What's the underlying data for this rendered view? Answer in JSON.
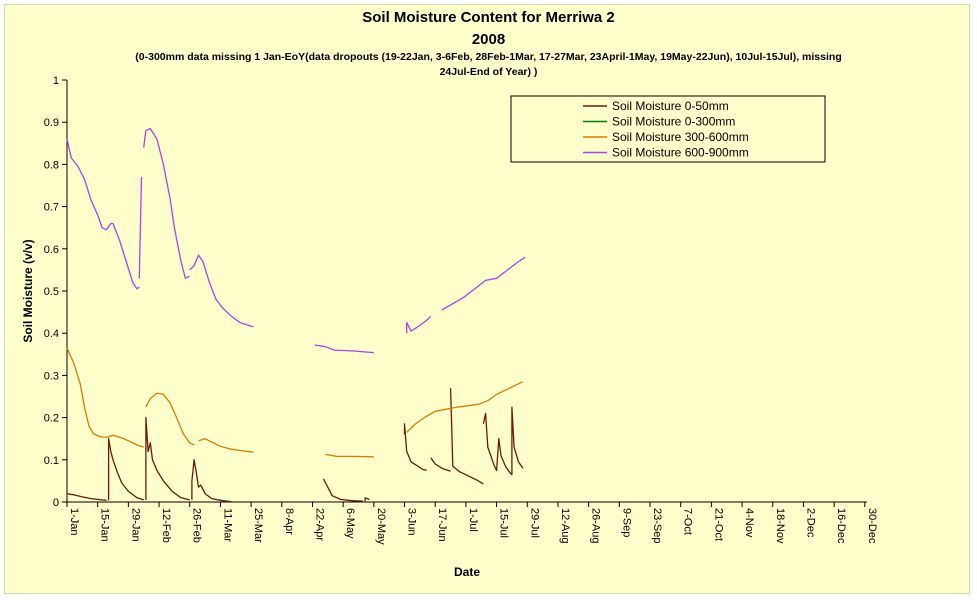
{
  "chart_data": {
    "type": "line",
    "title": "Soil Moisture Content for Merriwa 2",
    "subtitle": "2008",
    "note_line1": "(0-300mm data missing 1 Jan-EoY(data dropouts (19-22Jan, 3-6Feb, 28Feb-1Mar, 17-27Mar, 23April-1May, 19May-22Jun), 10Jul-15Jul), missing",
    "note_line2": "24Jul-End of Year) )",
    "xlabel": "Date",
    "ylabel": "Soil Moisture (v/v)",
    "ylim": [
      0,
      1
    ],
    "yticks": [
      0,
      0.1,
      0.2,
      0.3,
      0.4,
      0.5,
      0.6,
      0.7,
      0.8,
      0.9,
      1
    ],
    "ytick_labels": [
      "0",
      "0.1",
      "0.2",
      "0.3",
      "0.4",
      "0.5",
      "0.6",
      "0.7",
      "0.8",
      "0.9",
      "1"
    ],
    "xlim": [
      "2008-01-01",
      "2008-12-31"
    ],
    "xtick_dates": [
      "2008-01-01",
      "2008-01-15",
      "2008-01-29",
      "2008-02-12",
      "2008-02-26",
      "2008-03-11",
      "2008-03-25",
      "2008-04-08",
      "2008-04-22",
      "2008-05-06",
      "2008-05-20",
      "2008-06-03",
      "2008-06-17",
      "2008-07-01",
      "2008-07-15",
      "2008-07-29",
      "2008-08-12",
      "2008-08-26",
      "2008-09-09",
      "2008-09-23",
      "2008-10-07",
      "2008-10-21",
      "2008-11-04",
      "2008-11-18",
      "2008-12-02",
      "2008-12-16",
      "2008-12-30"
    ],
    "xtick_labels": [
      "1-Jan",
      "15-Jan",
      "29-Jan",
      "12-Feb",
      "26-Feb",
      "11-Mar",
      "25-Mar",
      "8-Apr",
      "22-Apr",
      "6-May",
      "20-May",
      "3-Jun",
      "17-Jun",
      "1-Jul",
      "15-Jul",
      "29-Jul",
      "12-Aug",
      "26-Aug",
      "9-Sep",
      "23-Sep",
      "7-Oct",
      "21-Oct",
      "4-Nov",
      "18-Nov",
      "2-Dec",
      "16-Dec",
      "30-Dec"
    ],
    "grid": false,
    "legend_position": "top-right",
    "series": [
      {
        "name": "Soil Moisture 0-50mm",
        "color": "#6b1a0a",
        "segments": [
          [
            [
              "2008-01-01",
              0.02
            ],
            [
              "2008-01-04",
              0.017
            ],
            [
              "2008-01-08",
              0.012
            ],
            [
              "2008-01-12",
              0.008
            ],
            [
              "2008-01-17",
              0.005
            ],
            [
              "2008-01-19",
              0.004
            ]
          ],
          [
            [
              "2008-01-20",
              0.004
            ],
            [
              "2008-01-20",
              0.15
            ],
            [
              "2008-01-21",
              0.12
            ],
            [
              "2008-01-22",
              0.1
            ],
            [
              "2008-01-24",
              0.07
            ],
            [
              "2008-01-26",
              0.045
            ],
            [
              "2008-01-29",
              0.025
            ],
            [
              "2008-02-02",
              0.01
            ],
            [
              "2008-02-05",
              0.005
            ]
          ],
          [
            [
              "2008-02-06",
              0.005
            ],
            [
              "2008-02-06",
              0.2
            ],
            [
              "2008-02-07",
              0.12
            ],
            [
              "2008-02-08",
              0.14
            ],
            [
              "2008-02-09",
              0.1
            ],
            [
              "2008-02-11",
              0.075
            ],
            [
              "2008-02-14",
              0.05
            ],
            [
              "2008-02-18",
              0.025
            ],
            [
              "2008-02-22",
              0.01
            ],
            [
              "2008-02-26",
              0.005
            ]
          ],
          [
            [
              "2008-02-27",
              0.005
            ],
            [
              "2008-02-27",
              0.05
            ],
            [
              "2008-02-28",
              0.1
            ],
            [
              "2008-02-29",
              0.07
            ],
            [
              "2008-03-01",
              0.035
            ],
            [
              "2008-03-02",
              0.04
            ],
            [
              "2008-03-04",
              0.02
            ],
            [
              "2008-03-07",
              0.008
            ],
            [
              "2008-03-12",
              0.003
            ],
            [
              "2008-03-16",
              0.001
            ]
          ],
          [
            [
              "2008-04-27",
              0.055
            ],
            [
              "2008-04-29",
              0.035
            ],
            [
              "2008-05-01",
              0.015
            ],
            [
              "2008-05-05",
              0.006
            ],
            [
              "2008-05-10",
              0.003
            ],
            [
              "2008-05-15",
              0.002
            ]
          ],
          [
            [
              "2008-05-16",
              0.002
            ],
            [
              "2008-05-16",
              0.01
            ],
            [
              "2008-05-18",
              0.006
            ]
          ],
          [
            [
              "2008-06-03",
              0.16
            ],
            [
              "2008-06-03",
              0.185
            ],
            [
              "2008-06-04",
              0.12
            ],
            [
              "2008-06-06",
              0.095
            ],
            [
              "2008-06-09",
              0.085
            ],
            [
              "2008-06-11",
              0.078
            ],
            [
              "2008-06-13",
              0.075
            ]
          ],
          [
            [
              "2008-06-15",
              0.105
            ],
            [
              "2008-06-17",
              0.09
            ],
            [
              "2008-06-20",
              0.08
            ],
            [
              "2008-06-24",
              0.073
            ]
          ],
          [
            [
              "2008-06-24",
              0.27
            ],
            [
              "2008-06-25",
              0.085
            ],
            [
              "2008-06-28",
              0.072
            ],
            [
              "2008-07-02",
              0.062
            ],
            [
              "2008-07-06",
              0.052
            ],
            [
              "2008-07-09",
              0.043
            ]
          ],
          [
            [
              "2008-07-09",
              0.185
            ],
            [
              "2008-07-10",
              0.21
            ],
            [
              "2008-07-11",
              0.13
            ],
            [
              "2008-07-13",
              0.1
            ],
            [
              "2008-07-14",
              0.085
            ],
            [
              "2008-07-15",
              0.075
            ],
            [
              "2008-07-16",
              0.15
            ],
            [
              "2008-07-17",
              0.11
            ],
            [
              "2008-07-19",
              0.085
            ],
            [
              "2008-07-21",
              0.07
            ],
            [
              "2008-07-22",
              0.065
            ],
            [
              "2008-07-22",
              0.225
            ],
            [
              "2008-07-23",
              0.13
            ],
            [
              "2008-07-25",
              0.095
            ],
            [
              "2008-07-27",
              0.08
            ]
          ]
        ]
      },
      {
        "name": "Soil Moisture 0-300mm",
        "color": "#008000",
        "segments": []
      },
      {
        "name": "Soil Moisture 300-600mm",
        "color": "#e07a00",
        "segments": [
          [
            [
              "2008-01-01",
              0.365
            ],
            [
              "2008-01-04",
              0.33
            ],
            [
              "2008-01-07",
              0.28
            ],
            [
              "2008-01-09",
              0.225
            ],
            [
              "2008-01-11",
              0.18
            ],
            [
              "2008-01-13",
              0.162
            ],
            [
              "2008-01-16",
              0.155
            ],
            [
              "2008-01-19",
              0.153
            ],
            [
              "2008-01-22",
              0.158
            ],
            [
              "2008-01-26",
              0.152
            ],
            [
              "2008-01-29",
              0.145
            ],
            [
              "2008-02-02",
              0.135
            ],
            [
              "2008-02-05",
              0.13
            ]
          ],
          [
            [
              "2008-02-06",
              0.225
            ],
            [
              "2008-02-08",
              0.245
            ],
            [
              "2008-02-11",
              0.258
            ],
            [
              "2008-02-14",
              0.255
            ],
            [
              "2008-02-17",
              0.235
            ],
            [
              "2008-02-20",
              0.2
            ],
            [
              "2008-02-23",
              0.162
            ],
            [
              "2008-02-26",
              0.14
            ],
            [
              "2008-02-28",
              0.135
            ]
          ],
          [
            [
              "2008-03-01",
              0.145
            ],
            [
              "2008-03-04",
              0.15
            ],
            [
              "2008-03-07",
              0.142
            ],
            [
              "2008-03-11",
              0.132
            ],
            [
              "2008-03-15",
              0.126
            ],
            [
              "2008-03-20",
              0.122
            ],
            [
              "2008-03-26",
              0.118
            ]
          ],
          [
            [
              "2008-04-28",
              0.113
            ],
            [
              "2008-05-03",
              0.108
            ],
            [
              "2008-05-10",
              0.108
            ],
            [
              "2008-05-20",
              0.107
            ]
          ],
          [
            [
              "2008-06-04",
              0.165
            ],
            [
              "2008-06-08",
              0.185
            ],
            [
              "2008-06-12",
              0.2
            ],
            [
              "2008-06-17",
              0.215
            ],
            [
              "2008-06-22",
              0.22
            ],
            [
              "2008-06-27",
              0.225
            ],
            [
              "2008-07-02",
              0.228
            ],
            [
              "2008-07-07",
              0.232
            ],
            [
              "2008-07-11",
              0.24
            ],
            [
              "2008-07-15",
              0.255
            ],
            [
              "2008-07-19",
              0.265
            ],
            [
              "2008-07-23",
              0.275
            ],
            [
              "2008-07-27",
              0.285
            ]
          ]
        ]
      },
      {
        "name": "Soil Moisture 600-900mm",
        "color": "#b042e6",
        "segments": [
          [
            [
              "2008-01-01",
              0.86
            ],
            [
              "2008-01-03",
              0.815
            ],
            [
              "2008-01-06",
              0.795
            ],
            [
              "2008-01-09",
              0.765
            ],
            [
              "2008-01-12",
              0.715
            ],
            [
              "2008-01-15",
              0.68
            ],
            [
              "2008-01-17",
              0.65
            ],
            [
              "2008-01-19",
              0.645
            ],
            [
              "2008-01-21",
              0.66
            ],
            [
              "2008-01-22",
              0.66
            ],
            [
              "2008-01-25",
              0.62
            ],
            [
              "2008-01-28",
              0.57
            ],
            [
              "2008-01-31",
              0.52
            ],
            [
              "2008-02-02",
              0.505
            ],
            [
              "2008-02-03",
              0.51
            ]
          ],
          [
            [
              "2008-02-03",
              0.53
            ],
            [
              "2008-02-04",
              0.77
            ]
          ],
          [
            [
              "2008-02-05",
              0.84
            ],
            [
              "2008-02-06",
              0.88
            ],
            [
              "2008-02-08",
              0.885
            ],
            [
              "2008-02-11",
              0.86
            ],
            [
              "2008-02-14",
              0.8
            ],
            [
              "2008-02-17",
              0.72
            ],
            [
              "2008-02-19",
              0.65
            ],
            [
              "2008-02-22",
              0.57
            ],
            [
              "2008-02-24",
              0.53
            ],
            [
              "2008-02-26",
              0.535
            ]
          ],
          [
            [
              "2008-02-26",
              0.55
            ],
            [
              "2008-02-28",
              0.56
            ],
            [
              "2008-03-01",
              0.585
            ],
            [
              "2008-03-03",
              0.57
            ],
            [
              "2008-03-06",
              0.52
            ],
            [
              "2008-03-09",
              0.48
            ],
            [
              "2008-03-12",
              0.46
            ],
            [
              "2008-03-16",
              0.44
            ],
            [
              "2008-03-20",
              0.425
            ],
            [
              "2008-03-26",
              0.415
            ]
          ],
          [
            [
              "2008-04-23",
              0.372
            ],
            [
              "2008-04-28",
              0.368
            ],
            [
              "2008-05-02",
              0.36
            ],
            [
              "2008-05-10",
              0.358
            ],
            [
              "2008-05-20",
              0.354
            ]
          ],
          [
            [
              "2008-06-04",
              0.4
            ],
            [
              "2008-06-04",
              0.425
            ],
            [
              "2008-06-06",
              0.405
            ],
            [
              "2008-06-09",
              0.415
            ],
            [
              "2008-06-13",
              0.43
            ],
            [
              "2008-06-15",
              0.44
            ]
          ],
          [
            [
              "2008-06-20",
              0.455
            ],
            [
              "2008-06-25",
              0.47
            ],
            [
              "2008-06-30",
              0.485
            ],
            [
              "2008-07-05",
              0.505
            ],
            [
              "2008-07-10",
              0.525
            ],
            [
              "2008-07-15",
              0.53
            ],
            [
              "2008-07-20",
              0.55
            ],
            [
              "2008-07-25",
              0.57
            ],
            [
              "2008-07-28",
              0.58
            ]
          ]
        ]
      }
    ]
  }
}
